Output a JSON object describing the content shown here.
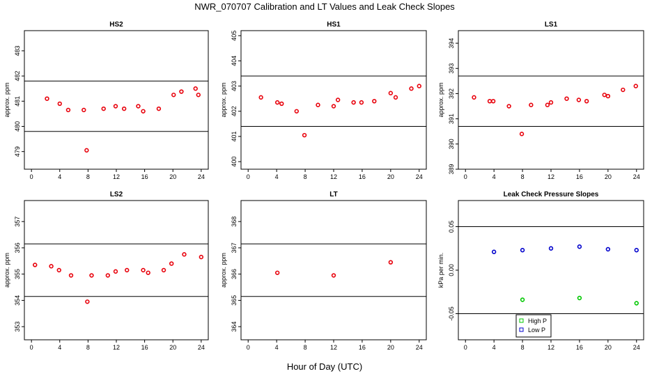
{
  "title": "NWR_070707  Calibration and LT Values and Leak Check Slopes",
  "xlabel": "Hour of Day (UTC)",
  "colors": {
    "cal_points": "#e8000b",
    "high_p": "#00c800",
    "low_p": "#0000cc",
    "lines": "#000000"
  },
  "legend": {
    "high_label": "High P",
    "low_label": "Low P"
  },
  "chart_data": [
    {
      "id": "hs2",
      "type": "scatter",
      "title": "HS2",
      "ylabel": "approx. ppm",
      "xlim": [
        -1,
        25
      ],
      "ylim": [
        478.3,
        483.8
      ],
      "xticks": [
        0,
        4,
        8,
        12,
        16,
        20,
        24
      ],
      "yticks": [
        479,
        480,
        481,
        482,
        483
      ],
      "hlines": [
        481.8,
        479.8
      ],
      "series": [
        {
          "color": "#e8000b",
          "marker": "circle",
          "x": [
            2.2,
            4.0,
            5.2,
            7.4,
            7.8,
            10.2,
            11.9,
            13.1,
            15.1,
            15.8,
            18.0,
            20.1,
            21.2,
            23.2,
            23.6
          ],
          "y": [
            481.1,
            480.9,
            480.65,
            480.65,
            479.05,
            480.7,
            480.8,
            480.7,
            480.8,
            480.6,
            480.7,
            481.25,
            481.38,
            481.5,
            481.25
          ]
        }
      ]
    },
    {
      "id": "hs1",
      "type": "scatter",
      "title": "HS1",
      "ylabel": "approx. ppm",
      "xlim": [
        -1,
        25
      ],
      "ylim": [
        399.7,
        405.2
      ],
      "xticks": [
        0,
        4,
        8,
        12,
        16,
        20,
        24
      ],
      "yticks": [
        400,
        401,
        402,
        403,
        404,
        405
      ],
      "hlines": [
        403.4,
        401.4
      ],
      "series": [
        {
          "color": "#e8000b",
          "marker": "circle",
          "x": [
            1.8,
            4.1,
            4.7,
            6.8,
            7.9,
            9.8,
            12.0,
            12.6,
            14.8,
            15.9,
            17.7,
            20.0,
            20.7,
            22.9,
            24.0
          ],
          "y": [
            402.55,
            402.35,
            402.3,
            402.0,
            401.05,
            402.25,
            402.2,
            402.45,
            402.35,
            402.35,
            402.4,
            402.72,
            402.55,
            402.9,
            403.0
          ]
        }
      ]
    },
    {
      "id": "ls1",
      "type": "scatter",
      "title": "LS1",
      "ylabel": "approx. ppm",
      "xlim": [
        -1,
        25
      ],
      "ylim": [
        389,
        394.5
      ],
      "xticks": [
        0,
        4,
        8,
        12,
        16,
        20,
        24
      ],
      "yticks": [
        389,
        390,
        391,
        392,
        393,
        394
      ],
      "hlines": [
        392.7,
        390.7
      ],
      "series": [
        {
          "color": "#e8000b",
          "marker": "circle",
          "x": [
            1.2,
            3.4,
            3.9,
            6.1,
            7.9,
            9.2,
            11.5,
            12.0,
            14.2,
            15.9,
            17.0,
            19.5,
            20.0,
            22.1,
            23.9
          ],
          "y": [
            391.85,
            391.7,
            391.7,
            391.5,
            390.4,
            391.55,
            391.55,
            391.65,
            391.8,
            391.75,
            391.7,
            391.95,
            391.9,
            392.15,
            392.3
          ]
        }
      ]
    },
    {
      "id": "ls2",
      "type": "scatter",
      "title": "LS2",
      "ylabel": "approx. ppm",
      "xlim": [
        -1,
        25
      ],
      "ylim": [
        352.5,
        357.8
      ],
      "xticks": [
        0,
        4,
        8,
        12,
        16,
        20,
        24
      ],
      "yticks": [
        353,
        354,
        355,
        356,
        357
      ],
      "hlines": [
        356.15,
        354.15
      ],
      "series": [
        {
          "color": "#e8000b",
          "marker": "circle",
          "x": [
            0.5,
            2.8,
            3.9,
            5.6,
            7.9,
            8.5,
            10.8,
            11.9,
            13.5,
            15.8,
            16.5,
            18.7,
            19.8,
            21.6,
            24.0
          ],
          "y": [
            355.35,
            355.3,
            355.15,
            354.95,
            353.95,
            354.95,
            354.95,
            355.1,
            355.15,
            355.15,
            355.05,
            355.15,
            355.4,
            355.75,
            355.65
          ]
        }
      ]
    },
    {
      "id": "lt",
      "type": "scatter",
      "title": "LT",
      "ylabel": "approx. ppm",
      "xlim": [
        -1,
        25
      ],
      "ylim": [
        363.5,
        368.8
      ],
      "xticks": [
        0,
        4,
        8,
        12,
        16,
        20,
        24
      ],
      "yticks": [
        364,
        365,
        366,
        367,
        368
      ],
      "hlines": [
        367.15,
        365.15
      ],
      "series": [
        {
          "color": "#e8000b",
          "marker": "circle",
          "x": [
            4.1,
            12.0,
            20.0
          ],
          "y": [
            366.05,
            365.95,
            366.45
          ]
        }
      ]
    },
    {
      "id": "leak",
      "type": "scatter",
      "title": "Leak Check Pressure Slopes",
      "ylabel": "kPa per min.",
      "xlim": [
        -1,
        25
      ],
      "ylim": [
        -0.08,
        0.08
      ],
      "xticks": [
        0,
        4,
        8,
        12,
        16,
        20,
        24
      ],
      "yticks": [
        -0.05,
        0.0,
        0.05
      ],
      "ytick_labels": [
        "-0.05",
        "0.00",
        "0.05"
      ],
      "hlines": [
        0.05,
        -0.05
      ],
      "legend_position": "bottom-center",
      "series": [
        {
          "name": "High P",
          "color": "#00c800",
          "marker": "circle",
          "x": [
            8.0,
            16.0,
            24.0
          ],
          "y": [
            -0.034,
            -0.032,
            -0.038
          ]
        },
        {
          "name": "Low P",
          "color": "#0000cc",
          "marker": "circle",
          "x": [
            4.0,
            8.0,
            12.0,
            16.0,
            20.0,
            24.0
          ],
          "y": [
            0.021,
            0.023,
            0.025,
            0.027,
            0.024,
            0.023
          ]
        }
      ]
    }
  ]
}
